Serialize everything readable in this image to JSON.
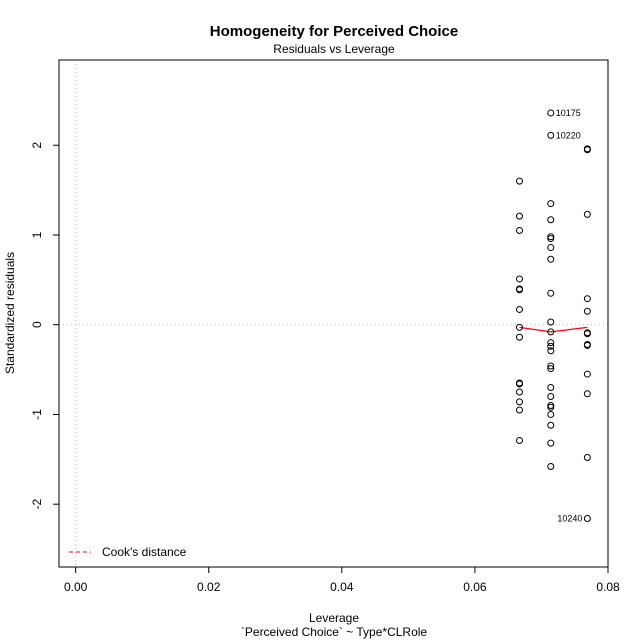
{
  "chart_data": {
    "type": "scatter",
    "title": "Homogeneity for Perceived Choice",
    "subtitle": "Residuals vs Leverage",
    "xlabel": "Leverage",
    "xlabel2": "`Perceived Choice` ~ Type*CLRole",
    "ylabel": "Standardized residuals",
    "xlim": [
      -0.0025,
      0.08
    ],
    "ylim": [
      -2.7,
      2.95
    ],
    "x_ticks": [
      0.0,
      0.02,
      0.04,
      0.06,
      0.08
    ],
    "x_tick_labels": [
      "0.00",
      "0.02",
      "0.04",
      "0.06",
      "0.08"
    ],
    "y_ticks": [
      -2,
      -1,
      0,
      1,
      2
    ],
    "y_tick_labels": [
      "-2",
      "-1",
      "0",
      "1",
      "2"
    ],
    "reference_lines": {
      "vertical_x": 0,
      "horizontal_y": 0,
      "style": "dotted",
      "color": "#bbbbbb"
    },
    "points": [
      {
        "x": 0.0667,
        "y": 1.6
      },
      {
        "x": 0.0667,
        "y": 1.21
      },
      {
        "x": 0.0667,
        "y": 1.05
      },
      {
        "x": 0.0667,
        "y": 0.51
      },
      {
        "x": 0.0667,
        "y": 0.4
      },
      {
        "x": 0.0667,
        "y": 0.39
      },
      {
        "x": 0.0667,
        "y": 0.17
      },
      {
        "x": 0.0667,
        "y": -0.03
      },
      {
        "x": 0.0667,
        "y": -0.14
      },
      {
        "x": 0.0667,
        "y": -0.65
      },
      {
        "x": 0.0667,
        "y": -0.66
      },
      {
        "x": 0.0667,
        "y": -0.75
      },
      {
        "x": 0.0667,
        "y": -0.86
      },
      {
        "x": 0.0667,
        "y": -0.95
      },
      {
        "x": 0.0667,
        "y": -1.29
      },
      {
        "x": 0.0714,
        "y": 2.36
      },
      {
        "x": 0.0714,
        "y": 2.11
      },
      {
        "x": 0.0714,
        "y": 1.35
      },
      {
        "x": 0.0714,
        "y": 1.17
      },
      {
        "x": 0.0714,
        "y": 0.98
      },
      {
        "x": 0.0714,
        "y": 0.96
      },
      {
        "x": 0.0714,
        "y": 0.86
      },
      {
        "x": 0.0714,
        "y": 0.73
      },
      {
        "x": 0.0714,
        "y": 0.35
      },
      {
        "x": 0.0714,
        "y": 0.03
      },
      {
        "x": 0.0714,
        "y": -0.08
      },
      {
        "x": 0.0714,
        "y": -0.2
      },
      {
        "x": 0.0714,
        "y": -0.24
      },
      {
        "x": 0.0714,
        "y": -0.29
      },
      {
        "x": 0.0714,
        "y": -0.46
      },
      {
        "x": 0.0714,
        "y": -0.49
      },
      {
        "x": 0.0714,
        "y": -0.7
      },
      {
        "x": 0.0714,
        "y": -0.8
      },
      {
        "x": 0.0714,
        "y": -0.9
      },
      {
        "x": 0.0714,
        "y": -0.92
      },
      {
        "x": 0.0714,
        "y": -1.0
      },
      {
        "x": 0.0714,
        "y": -1.12
      },
      {
        "x": 0.0714,
        "y": -1.32
      },
      {
        "x": 0.0714,
        "y": -1.58
      },
      {
        "x": 0.0769,
        "y": 1.96
      },
      {
        "x": 0.0769,
        "y": 1.95
      },
      {
        "x": 0.0769,
        "y": 1.23
      },
      {
        "x": 0.0769,
        "y": 0.29
      },
      {
        "x": 0.0769,
        "y": 0.15
      },
      {
        "x": 0.0769,
        "y": -0.09
      },
      {
        "x": 0.0769,
        "y": -0.1
      },
      {
        "x": 0.0769,
        "y": -0.22
      },
      {
        "x": 0.0769,
        "y": -0.23
      },
      {
        "x": 0.0769,
        "y": -0.55
      },
      {
        "x": 0.0769,
        "y": -0.77
      },
      {
        "x": 0.0769,
        "y": -1.48
      },
      {
        "x": 0.0769,
        "y": -2.16
      }
    ],
    "point_labels": [
      {
        "text": "10175",
        "x": 0.0714,
        "y": 2.36,
        "side": "right"
      },
      {
        "text": "10220",
        "x": 0.0714,
        "y": 2.11,
        "side": "right"
      },
      {
        "text": "10240",
        "x": 0.0769,
        "y": -2.16,
        "side": "left"
      }
    ],
    "smooth_line": {
      "color": "#ff0000",
      "points": [
        {
          "x": 0.0667,
          "y": -0.03
        },
        {
          "x": 0.0714,
          "y": -0.08
        },
        {
          "x": 0.0769,
          "y": -0.03
        }
      ]
    },
    "legend": {
      "position": "bottom-left",
      "label": "Cook's distance",
      "color": "#ff0000",
      "line_style": "dashed"
    }
  }
}
